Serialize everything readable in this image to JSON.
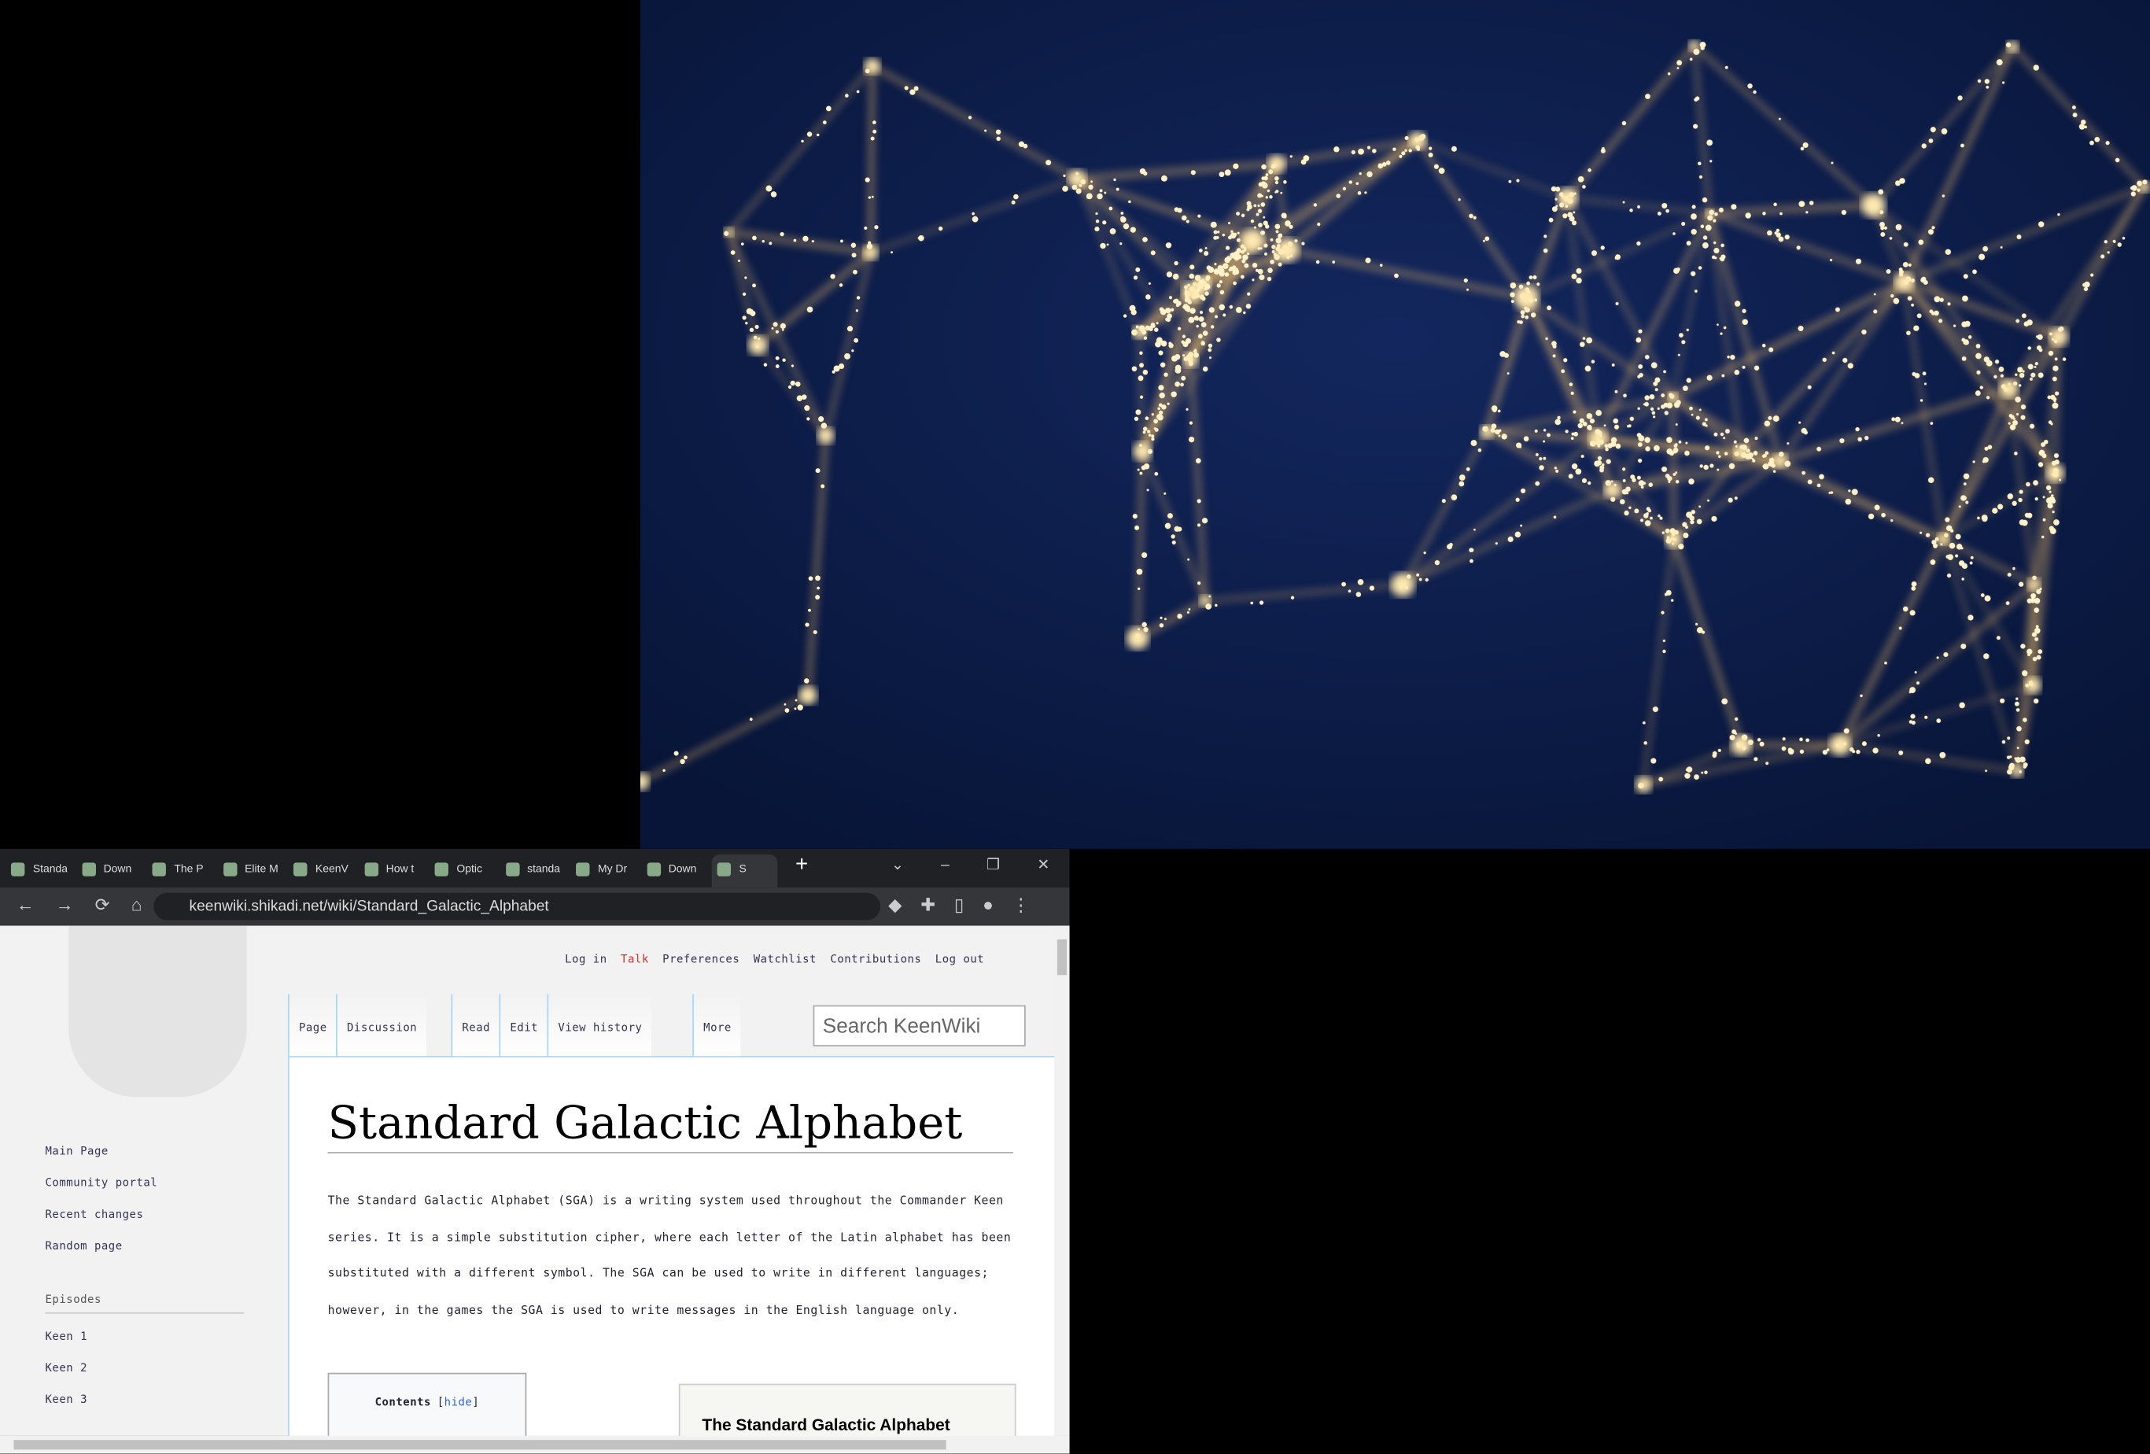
{
  "tabs": [
    "Standa",
    "Down",
    "The P",
    "Elite M",
    "KeenV",
    "How t",
    "Optic",
    "standa",
    "My Dr",
    "Down",
    "S"
  ],
  "address_bar": {
    "url": "keenwiki.shikadi.net/wiki/Standard_Galactic_Alphabet"
  },
  "wiki": {
    "personal_tools": [
      "Log in",
      "Talk",
      "Preferences",
      "Watchlist",
      "Contributions",
      "Log out"
    ],
    "namespace_tabs": [
      "Page",
      "Discussion"
    ],
    "view_tabs": [
      "Read",
      "Edit",
      "View history"
    ],
    "more": "More",
    "search_placeholder": "Search KeenWiki",
    "title": "Standard Galactic Alphabet",
    "paragraph": "The Standard Galactic Alphabet (SGA) is a writing system used throughout the Commander Keen series. It is a simple substitution cipher, where each letter of the Latin alphabet has been substituted with a different symbol. The SGA can be used to write in different languages; however, in the games the SGA is used to write messages in the English language only.",
    "sidebar": {
      "navigation": [
        "Main Page",
        "Community portal",
        "Recent changes",
        "Random page"
      ],
      "episodes_heading": "Episodes",
      "episodes": [
        "Keen 1",
        "Keen 2",
        "Keen 3"
      ]
    },
    "toc": {
      "title": "Contents",
      "toggle": "hide"
    },
    "figure_caption": "The Standard Galactic Alphabet"
  }
}
